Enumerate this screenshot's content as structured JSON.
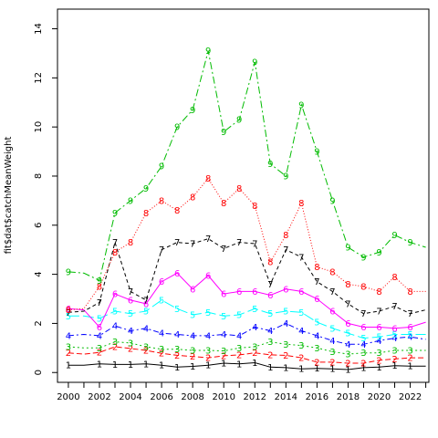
{
  "chart_data": {
    "type": "line",
    "title": "",
    "xlabel": "",
    "ylabel": "fit$dat$catchMeanWeight",
    "xlim": [
      1999.3,
      2023.2
    ],
    "ylim": [
      -0.4,
      14.8
    ],
    "xticks": [
      2000,
      2002,
      2004,
      2006,
      2008,
      2010,
      2012,
      2014,
      2016,
      2018,
      2020,
      2022
    ],
    "yticks": [
      0,
      2,
      4,
      6,
      8,
      10,
      12,
      14
    ],
    "grid": false,
    "legend": "none",
    "x": [
      2000,
      2001,
      2002,
      2003,
      2004,
      2005,
      2006,
      2007,
      2008,
      2009,
      2010,
      2011,
      2012,
      2013,
      2014,
      2015,
      2016,
      2017,
      2018,
      2019,
      2020,
      2021,
      2022,
      2023
    ],
    "marker_years": [
      2000,
      2002,
      2003,
      2004,
      2005,
      2006,
      2007,
      2008,
      2009,
      2010,
      2011,
      2012,
      2013,
      2014,
      2015,
      2016,
      2017,
      2018,
      2019,
      2020,
      2021,
      2022
    ],
    "series": [
      {
        "label": "1",
        "color": "#000000",
        "dash": "",
        "values": [
          0.3,
          0.3,
          0.35,
          0.33,
          0.33,
          0.35,
          0.3,
          0.22,
          0.25,
          0.3,
          0.38,
          0.35,
          0.4,
          0.22,
          0.2,
          0.15,
          0.17,
          0.15,
          0.12,
          0.2,
          0.22,
          0.28,
          0.26,
          0.26
        ]
      },
      {
        "label": "2",
        "color": "#ff0000",
        "dash": "6,3",
        "values": [
          0.8,
          0.75,
          0.82,
          1.05,
          0.98,
          0.9,
          0.78,
          0.7,
          0.65,
          0.6,
          0.68,
          0.72,
          0.8,
          0.72,
          0.7,
          0.6,
          0.42,
          0.42,
          0.38,
          0.38,
          0.5,
          0.55,
          0.6,
          0.6
        ]
      },
      {
        "label": "3",
        "color": "#00bb00",
        "dash": "2,3",
        "values": [
          1.05,
          1.0,
          1.0,
          1.25,
          1.2,
          1.05,
          0.95,
          0.95,
          0.9,
          0.9,
          0.88,
          1.0,
          1.05,
          1.25,
          1.15,
          1.1,
          1.0,
          0.85,
          0.75,
          0.8,
          0.8,
          0.9,
          0.9,
          0.9
        ]
      },
      {
        "label": "4",
        "color": "#0000ff",
        "dash": "6,3,2,3",
        "values": [
          1.5,
          1.55,
          1.5,
          1.9,
          1.7,
          1.8,
          1.6,
          1.55,
          1.5,
          1.5,
          1.55,
          1.5,
          1.85,
          1.7,
          2.0,
          1.7,
          1.5,
          1.3,
          1.15,
          1.15,
          1.3,
          1.4,
          1.45,
          1.35
        ]
      },
      {
        "label": "5",
        "color": "#00ffff",
        "dash": "12,4",
        "values": [
          2.3,
          2.3,
          2.2,
          2.5,
          2.4,
          2.5,
          2.95,
          2.6,
          2.35,
          2.45,
          2.3,
          2.35,
          2.6,
          2.4,
          2.5,
          2.45,
          2.05,
          1.8,
          1.6,
          1.4,
          1.45,
          1.55,
          1.55,
          1.55
        ]
      },
      {
        "label": "6",
        "color": "#ff00ff",
        "dash": "",
        "values": [
          2.6,
          2.55,
          1.85,
          3.2,
          2.95,
          2.8,
          3.7,
          4.05,
          3.4,
          3.95,
          3.2,
          3.3,
          3.3,
          3.15,
          3.4,
          3.3,
          3.0,
          2.5,
          2.0,
          1.85,
          1.85,
          1.8,
          1.85,
          2.05
        ]
      },
      {
        "label": "7",
        "color": "#000000",
        "dash": "4,3",
        "values": [
          2.45,
          2.5,
          2.85,
          5.3,
          3.3,
          2.95,
          5.0,
          5.3,
          5.25,
          5.45,
          5.05,
          5.3,
          5.25,
          3.6,
          5.0,
          4.7,
          3.7,
          3.3,
          2.8,
          2.4,
          2.5,
          2.7,
          2.4,
          2.55
        ]
      },
      {
        "label": "8",
        "color": "#ff0000",
        "dash": "1,2",
        "values": [
          2.55,
          2.6,
          3.5,
          4.9,
          5.3,
          6.5,
          7.0,
          6.6,
          7.15,
          7.9,
          6.9,
          7.5,
          6.8,
          4.5,
          5.6,
          6.9,
          4.3,
          4.1,
          3.6,
          3.5,
          3.3,
          3.9,
          3.3,
          3.3
        ]
      },
      {
        "label": "9",
        "color": "#00bb00",
        "dash": "8,3,2,3",
        "values": [
          4.1,
          4.05,
          3.75,
          6.5,
          7.0,
          7.5,
          8.4,
          10.0,
          10.7,
          13.1,
          9.8,
          10.3,
          12.65,
          8.5,
          8.0,
          10.9,
          9.0,
          7.0,
          5.1,
          4.7,
          4.9,
          5.6,
          5.3,
          5.1
        ]
      }
    ]
  }
}
